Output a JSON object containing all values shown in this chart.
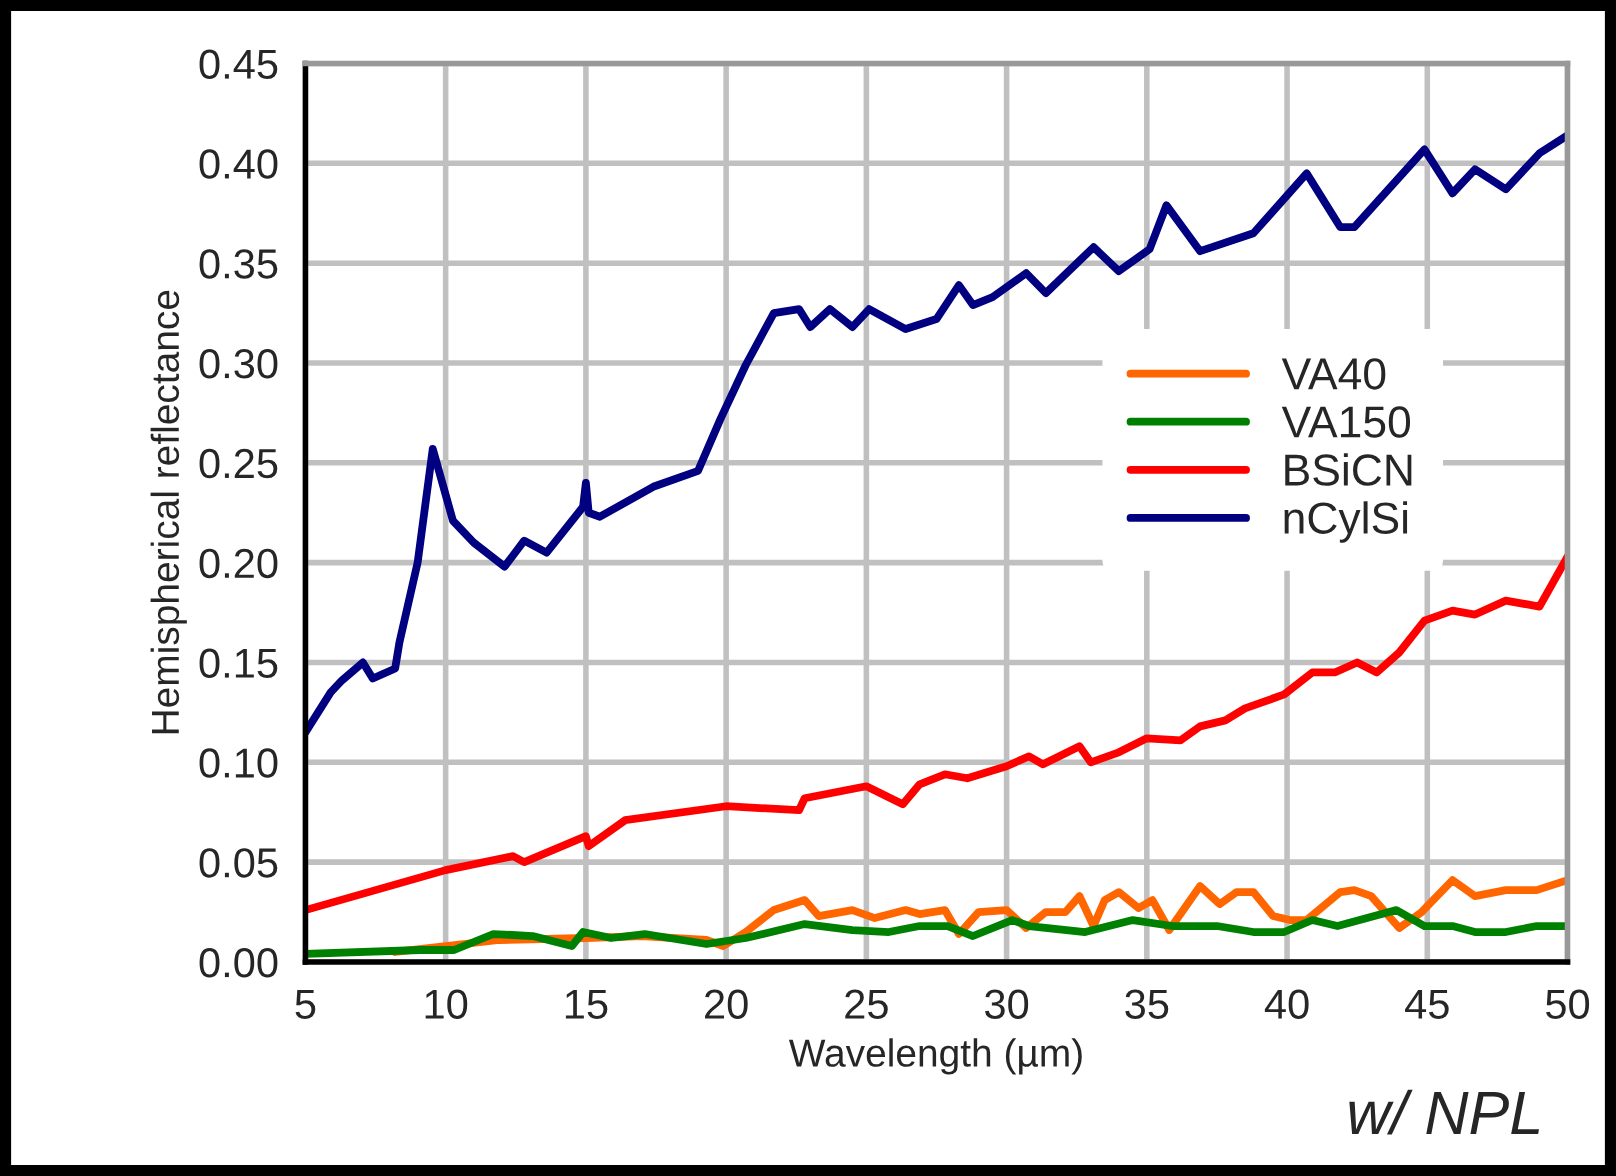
{
  "chart_data": {
    "type": "line",
    "xlabel": "Wavelength (µm)",
    "ylabel": "Hemispherical reflectance",
    "annotations": [
      "w/ NPL"
    ],
    "xlim": [
      5,
      50
    ],
    "xticks": [
      5,
      10,
      15,
      20,
      25,
      30,
      35,
      40,
      45,
      50
    ],
    "ylim": [
      0,
      0.45
    ],
    "yticks": [
      {
        "value": 0,
        "label": "0.00"
      },
      {
        "value": 0.05,
        "label": "0.05"
      },
      {
        "value": 0.1,
        "label": "0.10"
      },
      {
        "value": 0.15,
        "label": "0.15"
      },
      {
        "value": 0.2,
        "label": "0.20"
      },
      {
        "value": 0.25,
        "label": "0.25"
      },
      {
        "value": 0.3,
        "label": "0.30"
      },
      {
        "value": 0.35,
        "label": "0.35"
      },
      {
        "value": 0.4,
        "label": "0.40"
      },
      {
        "value": 0.45,
        "label": "0.45"
      }
    ],
    "grid": true,
    "legend": "right",
    "line_style": "solid",
    "marker": "none",
    "series": [
      {
        "name": "VA40",
        "color": "#ff6600",
        "x": [
          8.2,
          11.9,
          15,
          17,
          19.3,
          19.9,
          20.7,
          21.7,
          22.8,
          23.3,
          24.5,
          25.3,
          26.4,
          26.9,
          27.8,
          28.3,
          29.0,
          30,
          30.7,
          31.4,
          32.1,
          32.6,
          33.1,
          33.5,
          34.0,
          34.7,
          35.2,
          35.8,
          36.9,
          37.6,
          38.2,
          38.8,
          39.5,
          40.1,
          40.7,
          41.9,
          42.4,
          43.0,
          44.0,
          44.8,
          45.9,
          46.7,
          47.8,
          48.9,
          50
        ],
        "values": [
          0.005,
          0.011,
          0.012,
          0.013,
          0.011,
          0.008,
          0.015,
          0.026,
          0.031,
          0.023,
          0.026,
          0.022,
          0.026,
          0.024,
          0.026,
          0.014,
          0.025,
          0.026,
          0.017,
          0.025,
          0.025,
          0.033,
          0.018,
          0.031,
          0.035,
          0.027,
          0.031,
          0.016,
          0.038,
          0.029,
          0.035,
          0.035,
          0.023,
          0.021,
          0.021,
          0.035,
          0.036,
          0.033,
          0.017,
          0.025,
          0.041,
          0.033,
          0.036,
          0.036,
          0.041
        ]
      },
      {
        "name": "VA150",
        "color": "#008000",
        "x": [
          5,
          9.1,
          10.3,
          11.7,
          13.1,
          14.5,
          14.9,
          15.9,
          17.1,
          19.3,
          20.7,
          22.8,
          24.5,
          25.8,
          26.9,
          27.9,
          28.8,
          30.2,
          30.8,
          32.8,
          34.5,
          35.9,
          37.5,
          38.8,
          39.9,
          40.9,
          41.8,
          43.9,
          44.9,
          45.9,
          46.7,
          47.8,
          48.9,
          50
        ],
        "values": [
          0.004,
          0.006,
          0.006,
          0.014,
          0.013,
          0.008,
          0.015,
          0.012,
          0.014,
          0.009,
          0.012,
          0.019,
          0.016,
          0.015,
          0.018,
          0.018,
          0.013,
          0.021,
          0.018,
          0.015,
          0.021,
          0.018,
          0.018,
          0.015,
          0.015,
          0.021,
          0.018,
          0.026,
          0.018,
          0.018,
          0.015,
          0.015,
          0.018,
          0.018
        ]
      },
      {
        "name": "BSiCN",
        "color": "#ff0000",
        "x": [
          5,
          10,
          12.4,
          12.8,
          15,
          15.1,
          16.4,
          20,
          22.6,
          22.8,
          25,
          26.3,
          26.9,
          27.8,
          28.6,
          30,
          30.8,
          31.3,
          32.6,
          33.0,
          34,
          35,
          36.2,
          36.9,
          37.8,
          38.5,
          39.9,
          40.9,
          41.7,
          42.5,
          43.2,
          44,
          44.9,
          45.9,
          46.7,
          47.8,
          49,
          50
        ],
        "values": [
          0.026,
          0.046,
          0.053,
          0.05,
          0.063,
          0.058,
          0.071,
          0.078,
          0.076,
          0.082,
          0.088,
          0.079,
          0.089,
          0.094,
          0.092,
          0.098,
          0.103,
          0.099,
          0.108,
          0.1,
          0.105,
          0.112,
          0.111,
          0.118,
          0.121,
          0.127,
          0.134,
          0.145,
          0.145,
          0.15,
          0.145,
          0.155,
          0.171,
          0.176,
          0.174,
          0.181,
          0.178,
          0.203
        ]
      },
      {
        "name": "nCylSi",
        "color": "#000080",
        "x": [
          5,
          5.9,
          6.3,
          7.05,
          7.4,
          8.2,
          8.35,
          9.0,
          9.54,
          10.26,
          11.0,
          12.1,
          12.8,
          13.6,
          14.9,
          15.0,
          15.1,
          15.5,
          17.4,
          19.0,
          19.8,
          20.7,
          21.7,
          22.6,
          23.0,
          23.7,
          24.5,
          25.1,
          26.4,
          27.5,
          28.3,
          28.8,
          29.5,
          30.7,
          31.4,
          33.1,
          34.0,
          35.1,
          35.7,
          36.9,
          38.8,
          40.7,
          41.9,
          42.4,
          44.9,
          45.9,
          46.7,
          47.8,
          49.0,
          50
        ],
        "values": [
          0.115,
          0.135,
          0.141,
          0.15,
          0.142,
          0.147,
          0.16,
          0.2,
          0.257,
          0.221,
          0.21,
          0.198,
          0.211,
          0.205,
          0.228,
          0.24,
          0.225,
          0.223,
          0.238,
          0.246,
          0.272,
          0.299,
          0.325,
          0.327,
          0.318,
          0.327,
          0.318,
          0.327,
          0.317,
          0.322,
          0.339,
          0.329,
          0.333,
          0.345,
          0.335,
          0.358,
          0.346,
          0.357,
          0.379,
          0.356,
          0.365,
          0.395,
          0.368,
          0.368,
          0.407,
          0.385,
          0.397,
          0.387,
          0.405,
          0.414
        ]
      }
    ]
  }
}
